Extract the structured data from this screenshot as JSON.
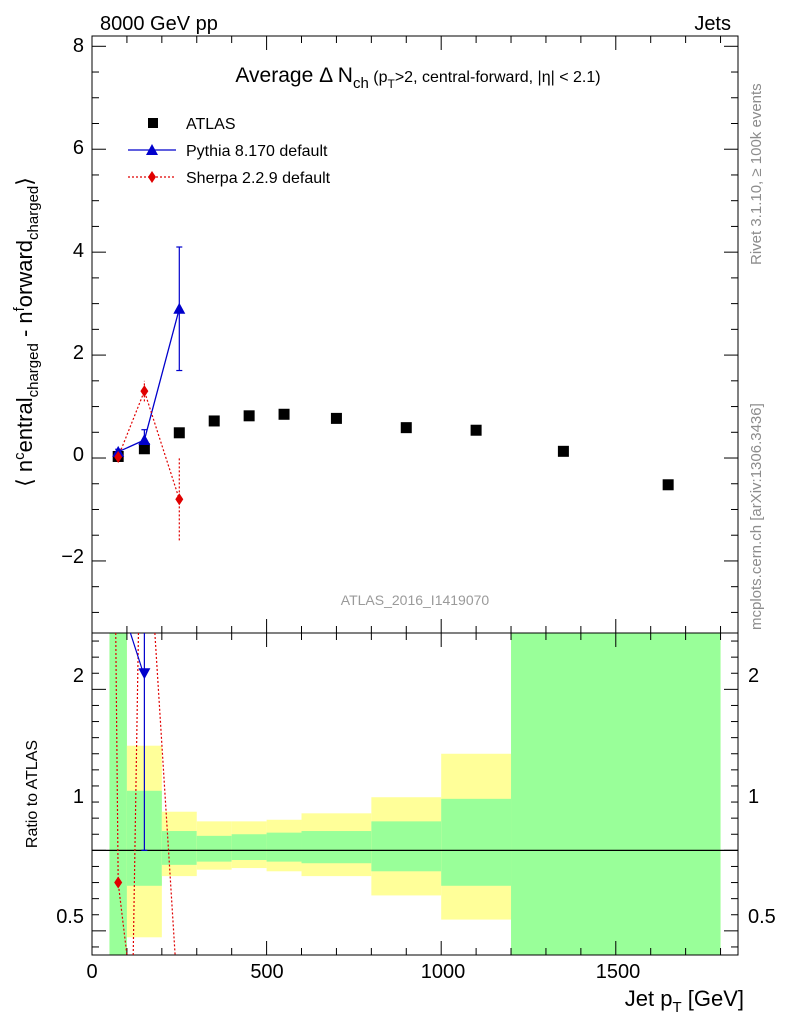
{
  "header": {
    "left": "8000 GeV pp",
    "right": "Jets"
  },
  "plot_title": {
    "main": "Average Δ N",
    "main_sub": "ch",
    "cond_a": " (p",
    "cond_sub": "T",
    "cond_b": ">2, central-forward, |η| < 2.1)"
  },
  "ylabel_top": {
    "p1": "⟨ n",
    "p2": "c",
    "p3": "entral",
    "p4": "charged",
    "p5": " - n",
    "p6": "f",
    "p7": "orward",
    "p8": "charged",
    "p9": "⟩"
  },
  "ylabel_ratio": "Ratio to ATLAS",
  "xlabel": {
    "p1": "Jet p",
    "sub": "T",
    "p2": " [GeV]"
  },
  "side_labels": {
    "rivet": "Rivet 3.1.10, ≥ 100k events",
    "mcplots": "mcplots.cern.ch [arXiv:1306.3436]"
  },
  "watermark": "ATLAS_2016_I1419070",
  "colors": {
    "atlas": "#000000",
    "pythia": "#0000cc",
    "sherpa": "#e00000",
    "band_inner": "#99ff99",
    "band_outer": "#ffff99"
  },
  "chart_data": {
    "type": "scatter",
    "x_ticks": [
      "0",
      "500",
      "1000",
      "1500"
    ],
    "xlim": [
      0,
      1850
    ],
    "top_panel": {
      "ylim": [
        -3.4,
        8.2
      ],
      "y_ticks": [
        "−2",
        "0",
        "2",
        "4",
        "6",
        "8"
      ],
      "grid": false
    },
    "ratio_panel": {
      "ylim": [
        0.35,
        2.35
      ],
      "y_ticks": [
        "0.5",
        "1",
        "2"
      ],
      "grid": false
    },
    "legend": {
      "placement": "top-left",
      "entries": [
        "ATLAS",
        "Pythia 8.170 default",
        "Sherpa 2.2.9 default"
      ]
    },
    "series": [
      {
        "name": "ATLAS",
        "marker": "square",
        "x": [
          75,
          150,
          250,
          350,
          450,
          550,
          700,
          900,
          1100,
          1350,
          1650
        ],
        "y": [
          0.03,
          0.18,
          0.49,
          0.72,
          0.82,
          0.85,
          0.77,
          0.59,
          0.54,
          0.13,
          -0.52
        ]
      },
      {
        "name": "Pythia 8.170 default",
        "marker": "triangle",
        "x": [
          75,
          150,
          250
        ],
        "y": [
          0.12,
          0.35,
          2.9
        ],
        "y_err": [
          0.05,
          0.2,
          1.2
        ]
      },
      {
        "name": "Sherpa 2.2.9 default",
        "marker": "diamond",
        "x": [
          75,
          150,
          250
        ],
        "y": [
          0.02,
          1.3,
          -0.8
        ],
        "y_err": [
          0.05,
          0.2,
          0.8
        ]
      }
    ],
    "ratio_bands": [
      {
        "x_lo": 50,
        "x_hi": 100,
        "inner": [
          0.35,
          2.35
        ],
        "outer": [
          0.35,
          2.35
        ]
      },
      {
        "x_lo": 100,
        "x_hi": 200,
        "inner": [
          0.78,
          1.37
        ],
        "outer": [
          0.46,
          1.65
        ]
      },
      {
        "x_lo": 200,
        "x_hi": 300,
        "inner": [
          0.91,
          1.12
        ],
        "outer": [
          0.84,
          1.24
        ]
      },
      {
        "x_lo": 300,
        "x_hi": 400,
        "inner": [
          0.93,
          1.09
        ],
        "outer": [
          0.88,
          1.18
        ]
      },
      {
        "x_lo": 400,
        "x_hi": 500,
        "inner": [
          0.94,
          1.1
        ],
        "outer": [
          0.89,
          1.18
        ]
      },
      {
        "x_lo": 500,
        "x_hi": 600,
        "inner": [
          0.93,
          1.11
        ],
        "outer": [
          0.87,
          1.19
        ]
      },
      {
        "x_lo": 600,
        "x_hi": 800,
        "inner": [
          0.92,
          1.12
        ],
        "outer": [
          0.84,
          1.23
        ]
      },
      {
        "x_lo": 800,
        "x_hi": 1000,
        "inner": [
          0.87,
          1.18
        ],
        "outer": [
          0.72,
          1.33
        ]
      },
      {
        "x_lo": 1000,
        "x_hi": 1200,
        "inner": [
          0.78,
          1.32
        ],
        "outer": [
          0.57,
          1.6
        ]
      },
      {
        "x_lo": 1200,
        "x_hi": 1800,
        "inner": [
          0.35,
          2.35
        ],
        "outer": [
          0.35,
          2.35
        ]
      }
    ],
    "ratio_series": [
      {
        "name": "Pythia 8.170 default",
        "x": [
          150
        ],
        "y": [
          2.1
        ],
        "y_lo": [
          1.0
        ],
        "y_hi": [
          2.35
        ]
      },
      {
        "name": "Sherpa 2.2.9 default",
        "x": [
          75
        ],
        "y": [
          0.8
        ]
      }
    ]
  }
}
